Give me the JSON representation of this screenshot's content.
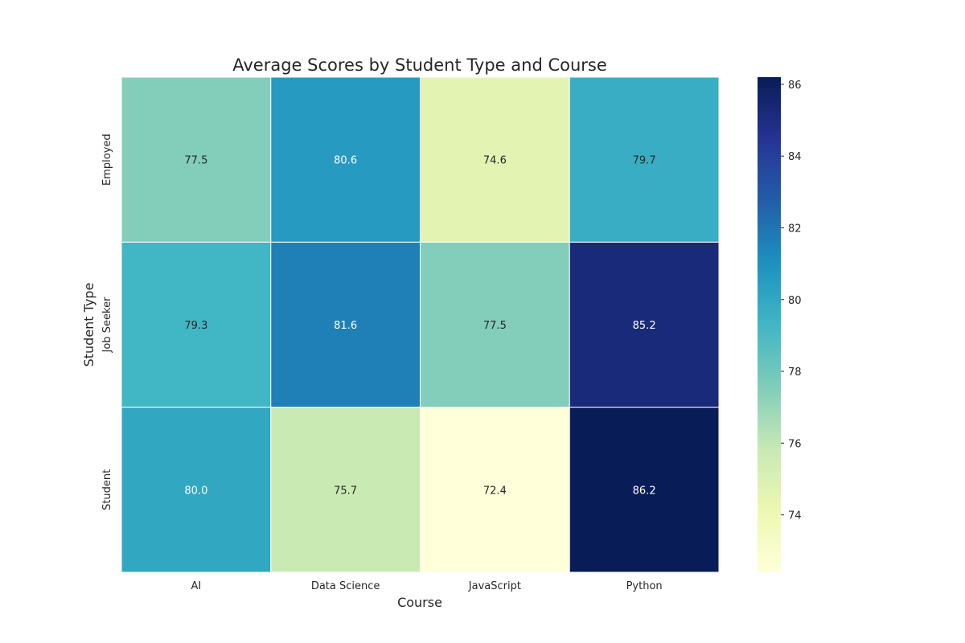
{
  "chart_data": {
    "type": "heatmap",
    "title": "Average Scores by Student Type and Course",
    "xlabel": "Course",
    "ylabel": "Student Type",
    "x_categories": [
      "AI",
      "Data Science",
      "JavaScript",
      "Python"
    ],
    "y_categories": [
      "Employed",
      "Job Seeker",
      "Student"
    ],
    "values": [
      [
        77.5,
        80.6,
        74.6,
        79.7
      ],
      [
        79.3,
        81.6,
        77.5,
        85.2
      ],
      [
        80.0,
        75.7,
        72.4,
        86.2
      ]
    ],
    "value_labels": [
      [
        "77.5",
        "80.6",
        "74.6",
        "79.7"
      ],
      [
        "79.3",
        "81.6",
        "77.5",
        "85.2"
      ],
      [
        "80.0",
        "75.7",
        "72.4",
        "86.2"
      ]
    ],
    "colormap": "YlGnBu",
    "color_range": [
      72.4,
      86.2
    ],
    "colorbar_ticks": [
      "74",
      "76",
      "78",
      "80",
      "82",
      "84",
      "86"
    ],
    "colorbar_tick_values": [
      74,
      76,
      78,
      80,
      82,
      84,
      86
    ],
    "annotation_colors": {
      "light_text": "#ffffff",
      "dark_text": "#262626"
    },
    "cell_border_color": "#ffffff"
  }
}
